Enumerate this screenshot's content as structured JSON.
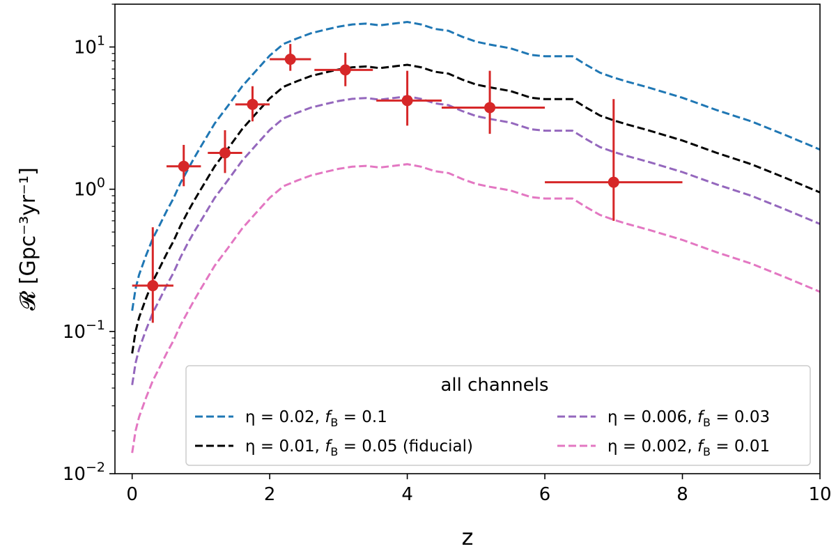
{
  "chart_data": {
    "type": "line",
    "title": "",
    "xlabel": "z",
    "ylabel": "𝓡  [Gpc⁻³yr⁻¹]",
    "xscale": "linear",
    "yscale": "log",
    "xlim": [
      -0.25,
      10
    ],
    "ylim": [
      0.01,
      20
    ],
    "xticks": [
      0,
      2,
      4,
      6,
      8,
      10
    ],
    "xtick_labels": [
      "0",
      "2",
      "4",
      "6",
      "8",
      "10"
    ],
    "yticks": [
      0.01,
      0.1,
      1,
      10
    ],
    "ytick_labels": [
      {
        "base": "10",
        "exp": "−2"
      },
      {
        "base": "10",
        "exp": "−1"
      },
      {
        "base": "10",
        "exp": "0"
      },
      {
        "base": "10",
        "exp": "1"
      }
    ],
    "grid": false,
    "legend": {
      "title": "all channels",
      "placement": "lower-right",
      "columns": 2
    },
    "series": [
      {
        "name": "η = 0.02, f_B = 0.1",
        "label_parts": [
          "η = 0.02, ",
          "f",
          "B",
          " = 0.1"
        ],
        "color": "#1f77b4",
        "style": "dashed",
        "x": [
          0,
          0.05,
          0.1,
          0.2,
          0.3,
          0.4,
          0.5,
          0.6,
          0.7,
          0.8,
          0.9,
          1.0,
          1.2,
          1.4,
          1.6,
          1.8,
          2.0,
          2.2,
          2.4,
          2.6,
          2.8,
          3.0,
          3.2,
          3.4,
          3.6,
          3.8,
          4.0,
          4.2,
          4.4,
          4.6,
          4.8,
          5.0,
          5.2,
          5.5,
          5.8,
          6.0,
          6.2,
          6.4,
          6.6,
          6.8,
          7.0,
          7.2,
          7.5,
          8.0,
          8.5,
          9.0,
          9.5,
          10.0
        ],
        "y": [
          0.14,
          0.2,
          0.25,
          0.34,
          0.45,
          0.56,
          0.7,
          0.86,
          1.1,
          1.35,
          1.65,
          2.0,
          2.9,
          3.9,
          5.3,
          6.8,
          8.7,
          10.5,
          11.5,
          12.5,
          13.2,
          13.9,
          14.4,
          14.6,
          14.2,
          14.6,
          15.0,
          14.4,
          13.4,
          13.0,
          11.8,
          10.9,
          10.4,
          9.8,
          8.8,
          8.6,
          8.6,
          8.6,
          7.5,
          6.6,
          6.1,
          5.7,
          5.2,
          4.4,
          3.6,
          3.0,
          2.4,
          1.9
        ]
      },
      {
        "name": "η = 0.01, f_B = 0.05 (fiducial)",
        "label_parts": [
          "η = 0.01, ",
          "f",
          "B",
          " = 0.05 (fiducial)"
        ],
        "color": "#000000",
        "style": "dashed",
        "x": [
          0,
          0.05,
          0.1,
          0.2,
          0.3,
          0.4,
          0.5,
          0.6,
          0.7,
          0.8,
          0.9,
          1.0,
          1.2,
          1.4,
          1.6,
          1.8,
          2.0,
          2.2,
          2.4,
          2.6,
          2.8,
          3.0,
          3.2,
          3.4,
          3.6,
          3.8,
          4.0,
          4.2,
          4.4,
          4.6,
          4.8,
          5.0,
          5.2,
          5.5,
          5.8,
          6.0,
          6.2,
          6.4,
          6.6,
          6.8,
          7.0,
          7.2,
          7.5,
          8.0,
          8.5,
          9.0,
          9.5,
          10.0
        ],
        "y": [
          0.07,
          0.1,
          0.125,
          0.17,
          0.225,
          0.28,
          0.35,
          0.43,
          0.55,
          0.68,
          0.83,
          1.0,
          1.45,
          1.95,
          2.65,
          3.4,
          4.35,
          5.25,
          5.75,
          6.25,
          6.6,
          6.95,
          7.2,
          7.3,
          7.1,
          7.3,
          7.5,
          7.2,
          6.7,
          6.5,
          5.9,
          5.45,
          5.2,
          4.9,
          4.4,
          4.3,
          4.3,
          4.3,
          3.75,
          3.3,
          3.05,
          2.85,
          2.6,
          2.2,
          1.8,
          1.5,
          1.2,
          0.95
        ]
      },
      {
        "name": "η = 0.006, f_B = 0.03",
        "label_parts": [
          "η = 0.006, ",
          "f",
          "B",
          " = 0.03"
        ],
        "color": "#9467bd",
        "style": "dashed",
        "x": [
          0,
          0.05,
          0.1,
          0.2,
          0.3,
          0.4,
          0.5,
          0.6,
          0.7,
          0.8,
          0.9,
          1.0,
          1.2,
          1.4,
          1.6,
          1.8,
          2.0,
          2.2,
          2.4,
          2.6,
          2.8,
          3.0,
          3.2,
          3.4,
          3.6,
          3.8,
          4.0,
          4.2,
          4.4,
          4.6,
          4.8,
          5.0,
          5.2,
          5.5,
          5.8,
          6.0,
          6.2,
          6.4,
          6.6,
          6.8,
          7.0,
          7.2,
          7.5,
          8.0,
          8.5,
          9.0,
          9.5,
          10.0
        ],
        "y": [
          0.042,
          0.06,
          0.075,
          0.102,
          0.135,
          0.168,
          0.21,
          0.258,
          0.33,
          0.41,
          0.5,
          0.6,
          0.87,
          1.17,
          1.59,
          2.04,
          2.61,
          3.15,
          3.45,
          3.75,
          3.96,
          4.17,
          4.32,
          4.38,
          4.26,
          4.38,
          4.5,
          4.32,
          4.02,
          3.9,
          3.54,
          3.27,
          3.12,
          2.94,
          2.64,
          2.58,
          2.58,
          2.58,
          2.25,
          1.98,
          1.83,
          1.71,
          1.56,
          1.32,
          1.08,
          0.9,
          0.72,
          0.57
        ]
      },
      {
        "name": "η = 0.002, f_B = 0.01",
        "label_parts": [
          "η = 0.002, ",
          "f",
          "B",
          " = 0.01"
        ],
        "color": "#e377c2",
        "style": "dashed",
        "x": [
          0,
          0.05,
          0.1,
          0.2,
          0.3,
          0.4,
          0.5,
          0.6,
          0.7,
          0.8,
          0.9,
          1.0,
          1.2,
          1.4,
          1.6,
          1.8,
          2.0,
          2.2,
          2.4,
          2.6,
          2.8,
          3.0,
          3.2,
          3.4,
          3.6,
          3.8,
          4.0,
          4.2,
          4.4,
          4.6,
          4.8,
          5.0,
          5.2,
          5.5,
          5.8,
          6.0,
          6.2,
          6.4,
          6.6,
          6.8,
          7.0,
          7.2,
          7.5,
          8.0,
          8.5,
          9.0,
          9.5,
          10.0
        ],
        "y": [
          0.014,
          0.02,
          0.025,
          0.034,
          0.045,
          0.056,
          0.07,
          0.086,
          0.11,
          0.135,
          0.165,
          0.2,
          0.29,
          0.39,
          0.53,
          0.68,
          0.87,
          1.05,
          1.15,
          1.25,
          1.32,
          1.39,
          1.44,
          1.46,
          1.42,
          1.46,
          1.5,
          1.44,
          1.34,
          1.3,
          1.18,
          1.09,
          1.04,
          0.98,
          0.88,
          0.86,
          0.86,
          0.86,
          0.75,
          0.66,
          0.61,
          0.57,
          0.52,
          0.44,
          0.36,
          0.3,
          0.24,
          0.19
        ]
      }
    ],
    "data_points": {
      "color": "#d62728",
      "points": [
        {
          "x": 0.3,
          "y": 0.21,
          "xerr": [
            0.3,
            0.3
          ],
          "yerr_low": 0.115,
          "yerr_high": 0.54
        },
        {
          "x": 0.75,
          "y": 1.45,
          "xerr": [
            0.25,
            0.25
          ],
          "yerr_low": 1.05,
          "yerr_high": 2.05
        },
        {
          "x": 1.35,
          "y": 1.8,
          "xerr": [
            0.25,
            0.25
          ],
          "yerr_low": 1.3,
          "yerr_high": 2.6
        },
        {
          "x": 1.75,
          "y": 3.95,
          "xerr": [
            0.25,
            0.25
          ],
          "yerr_low": 3.0,
          "yerr_high": 5.3
        },
        {
          "x": 2.3,
          "y": 8.2,
          "xerr": [
            0.3,
            0.3
          ],
          "yerr_low": 6.8,
          "yerr_high": 10.5
        },
        {
          "x": 3.1,
          "y": 6.9,
          "xerr": [
            0.45,
            0.4
          ],
          "yerr_low": 5.3,
          "yerr_high": 9.1
        },
        {
          "x": 4.0,
          "y": 4.2,
          "xerr": [
            0.45,
            0.5
          ],
          "yerr_low": 2.8,
          "yerr_high": 6.8
        },
        {
          "x": 5.2,
          "y": 3.75,
          "xerr": [
            0.7,
            0.8
          ],
          "yerr_low": 2.45,
          "yerr_high": 6.8
        },
        {
          "x": 7.0,
          "y": 1.12,
          "xerr": [
            1.0,
            1.0
          ],
          "yerr_low": 0.6,
          "yerr_high": 4.3
        }
      ]
    }
  }
}
